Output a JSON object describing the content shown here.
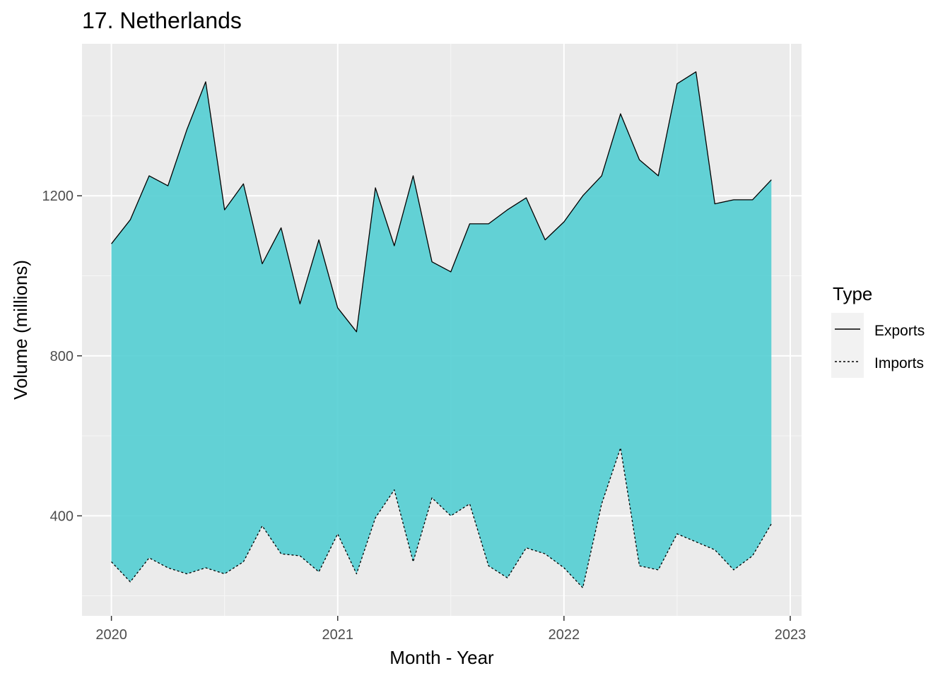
{
  "chart_data": {
    "type": "area",
    "title": "17. Netherlands",
    "xlabel": "Month - Year",
    "ylabel": "Volume (millions)",
    "x_tick_labels": [
      "2020",
      "2021",
      "2022",
      "2023"
    ],
    "y_tick_labels": [
      "400",
      "800",
      "1200"
    ],
    "x_ticks": [
      2020,
      2021,
      2022,
      2023
    ],
    "y_ticks": [
      400,
      800,
      1200
    ],
    "xlim": [
      2019.87,
      2023.05
    ],
    "ylim": [
      150,
      1580
    ],
    "grid": true,
    "fill_color": "#4ECDD2",
    "panel_background": "#EBEBEB",
    "legend": {
      "title": "Type",
      "position": "right",
      "items": [
        {
          "label": "Exports",
          "line": "solid"
        },
        {
          "label": "Imports",
          "line": "dotted"
        }
      ]
    },
    "x": [
      "2020-01",
      "2020-02",
      "2020-03",
      "2020-04",
      "2020-05",
      "2020-06",
      "2020-07",
      "2020-08",
      "2020-09",
      "2020-10",
      "2020-11",
      "2020-12",
      "2021-01",
      "2021-02",
      "2021-03",
      "2021-04",
      "2021-05",
      "2021-06",
      "2021-07",
      "2021-08",
      "2021-09",
      "2021-10",
      "2021-11",
      "2021-12",
      "2022-01",
      "2022-02",
      "2022-03",
      "2022-04",
      "2022-05",
      "2022-06",
      "2022-07",
      "2022-08",
      "2022-09",
      "2022-10",
      "2022-11",
      "2022-12"
    ],
    "series": [
      {
        "name": "Exports",
        "values": [
          1080,
          1140,
          1250,
          1225,
          1365,
          1485,
          1165,
          1230,
          1030,
          1120,
          930,
          1090,
          920,
          860,
          1220,
          1075,
          1250,
          1035,
          1010,
          1130,
          1130,
          1165,
          1195,
          1090,
          1135,
          1200,
          1250,
          1405,
          1290,
          1250,
          1480,
          1510,
          1180,
          1190,
          1190,
          1240
        ]
      },
      {
        "name": "Imports",
        "values": [
          285,
          235,
          295,
          270,
          255,
          270,
          255,
          285,
          375,
          305,
          300,
          260,
          355,
          255,
          395,
          465,
          285,
          445,
          400,
          430,
          275,
          245,
          320,
          305,
          270,
          220,
          430,
          570,
          275,
          265,
          355,
          335,
          315,
          265,
          300,
          380
        ]
      }
    ]
  }
}
